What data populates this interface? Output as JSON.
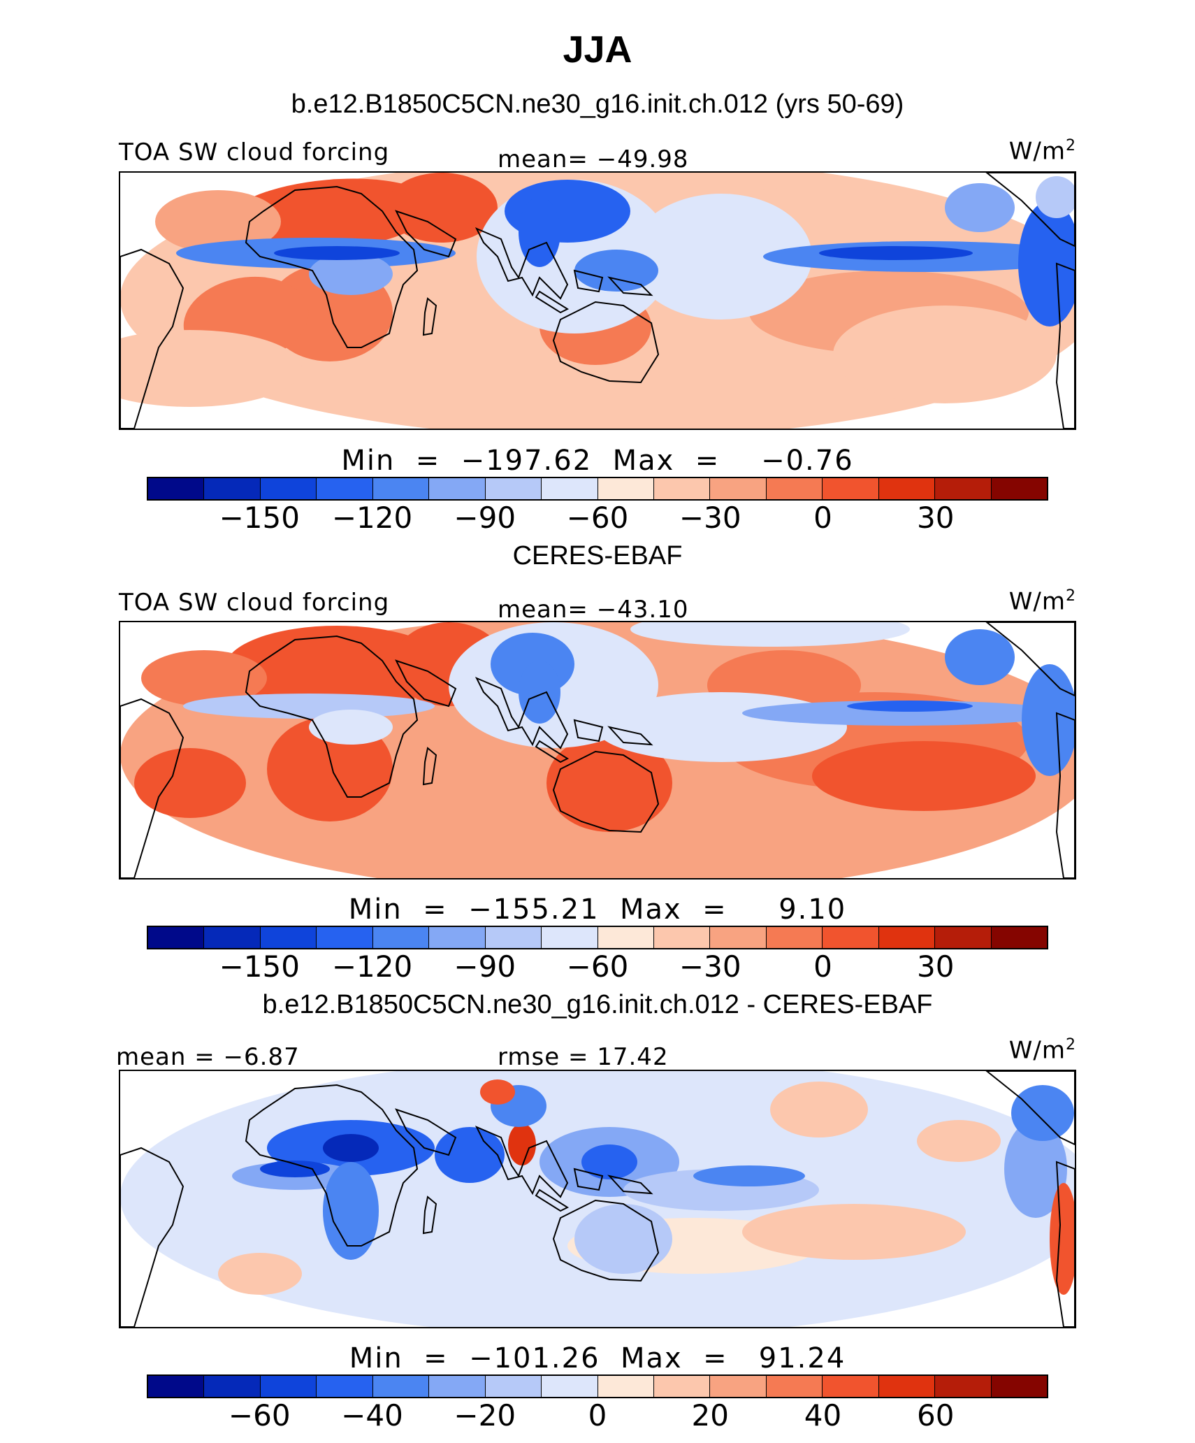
{
  "main_title": "JJA",
  "colors": [
    "#00098a",
    "#0529b9",
    "#0f44db",
    "#2662f0",
    "#4b85f2",
    "#84a8f5",
    "#b6c9f8",
    "#dde6fb",
    "#fde8d8",
    "#fcc7ad",
    "#f8a381",
    "#f57a53",
    "#f1542e",
    "#e0330f",
    "#b51d09",
    "#850500"
  ],
  "panels": [
    {
      "title": "b.e12.B1850C5CN.ne30_g16.init.ch.012 (yrs 50-69)",
      "left_label": "TOA SW cloud forcing",
      "center_label": "mean=  −49.98",
      "unit": "W/m",
      "unit_sup": "2",
      "minmax": "Min  =  −197.62  Max  =    −0.76",
      "ticks": [
        "−150",
        "−120",
        "−90",
        "−60",
        "−30",
        "0",
        "30"
      ],
      "tick_positions": [
        2,
        4,
        6,
        8,
        10,
        12,
        14
      ],
      "field_range": [
        -197.62,
        -0.76
      ]
    },
    {
      "title": "CERES-EBAF",
      "left_label": "TOA SW cloud forcing",
      "center_label": "mean=  −43.10",
      "unit": "W/m",
      "unit_sup": "2",
      "minmax": "Min  =  −155.21  Max  =     9.10",
      "ticks": [
        "−150",
        "−120",
        "−90",
        "−60",
        "−30",
        "0",
        "30"
      ],
      "tick_positions": [
        2,
        4,
        6,
        8,
        10,
        12,
        14
      ],
      "field_range": [
        -155.21,
        9.1
      ]
    },
    {
      "title": "b.e12.B1850C5CN.ne30_g16.init.ch.012 - CERES-EBAF",
      "left_label": "mean  =   −6.87",
      "center_label": "rmse  =   17.42",
      "unit": "W/m",
      "unit_sup": "2",
      "minmax": "Min  =  −101.26  Max  =   91.24",
      "ticks": [
        "−60",
        "−40",
        "−20",
        "0",
        "20",
        "40",
        "60"
      ],
      "tick_positions": [
        2,
        4,
        6,
        8,
        10,
        12,
        14
      ],
      "field_range": [
        -101.26,
        91.24
      ]
    }
  ]
}
